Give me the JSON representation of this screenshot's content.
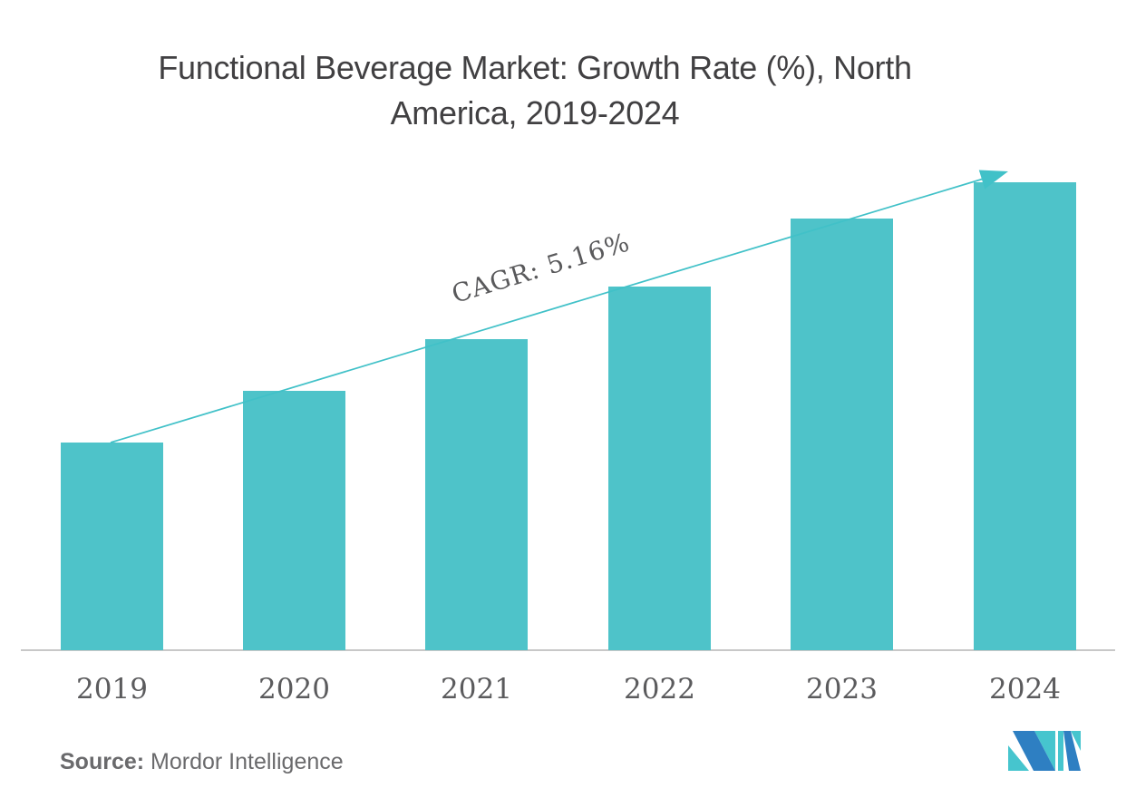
{
  "title": {
    "line1": "Functional Beverage Market: Growth Rate (%), North",
    "line2": "America, 2019-2024"
  },
  "chart_data": {
    "type": "bar",
    "title": "Functional Beverage Market: Growth Rate (%), North America, 2019-2024",
    "categories": [
      "2019",
      "2020",
      "2021",
      "2022",
      "2023",
      "2024"
    ],
    "values": [
      44.4,
      55.4,
      66.5,
      77.7,
      92.2,
      100
    ],
    "values_unit": "relative bar height, % of tallest bar (no numeric y-axis shown)",
    "xlabel": "",
    "ylabel": "",
    "y_axis_labels_visible": false,
    "gridlines": false,
    "legend": "none",
    "bar_color": "#4EC3C9",
    "trend_line": {
      "label": "CAGR: 5.16%",
      "color": "#41C1C8",
      "description": "straight arrow rising from top of 2019 bar to above 2024 bar"
    },
    "cagr_pct": 5.16
  },
  "annotation": {
    "cagr_label": "CAGR: 5.16%"
  },
  "source": {
    "prefix": "Source:",
    "name": " Mordor Intelligence"
  },
  "logo": {
    "name": "mordor-intelligence-logo",
    "blue": "#2E7FC2",
    "teal": "#46C5CE"
  },
  "colors": {
    "title_text": "#414042",
    "tick_label": "#5B5B5D",
    "cagr_text": "#59595B",
    "source_text": "#6A6A6C",
    "axis_line": "#C8C8C8",
    "background": "#FFFFFF"
  }
}
